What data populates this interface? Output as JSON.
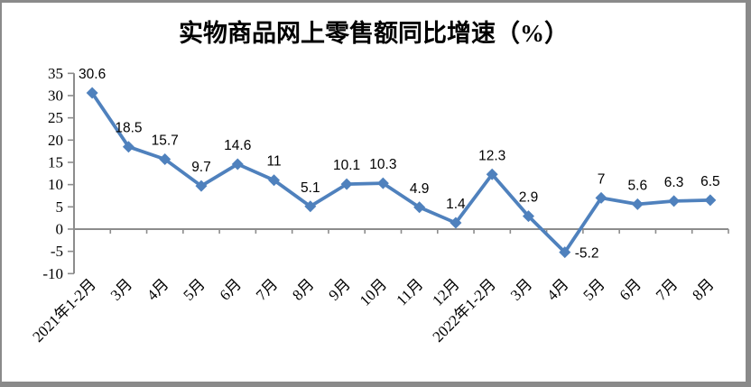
{
  "figure": {
    "background": "#FFFFFF",
    "border_color": "#8A8A8A"
  },
  "chart_data": {
    "type": "line",
    "title": "实物商品网上零售额同比增速（%）",
    "categories": [
      "2021年1-2月",
      "3月",
      "4月",
      "5月",
      "6月",
      "7月",
      "8月",
      "9月",
      "10月",
      "11月",
      "12月",
      "2022年1-2月",
      "3月",
      "4月",
      "5月",
      "6月",
      "7月",
      "8月"
    ],
    "series": [
      {
        "name": "实物商品网上零售额同比增速",
        "values": [
          30.6,
          18.5,
          15.7,
          9.7,
          14.6,
          11,
          5.1,
          10.1,
          10.3,
          4.9,
          1.4,
          12.3,
          2.9,
          -5.2,
          7,
          5.6,
          6.3,
          6.5
        ],
        "labels": [
          "30.6",
          "18.5",
          "15.7",
          "9.7",
          "14.6",
          "11",
          "5.1",
          "10.1",
          "10.3",
          "4.9",
          "1.4",
          "12.3",
          "2.9",
          "-5.2",
          "7",
          "5.6",
          "6.3",
          "6.5"
        ]
      }
    ],
    "xlabel": "",
    "ylabel": "",
    "ylim": [
      -10,
      35
    ],
    "yticks": [
      35,
      30,
      25,
      20,
      15,
      10,
      5,
      0,
      -5,
      -10
    ],
    "x_tick_rotation": -45,
    "grid": false,
    "legend_position": "none",
    "line_color": "#4F81BD",
    "marker": "diamond",
    "axis_color": "#8C8C8C",
    "label_color": "#000000"
  }
}
